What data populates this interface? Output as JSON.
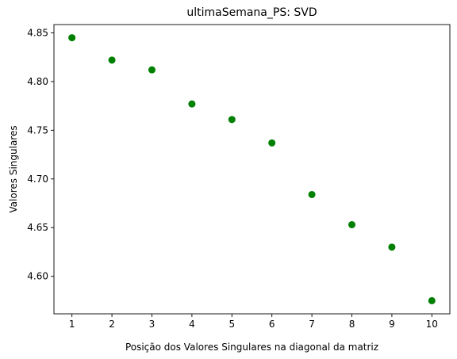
{
  "chart_data": {
    "type": "scatter",
    "title": "ultimaSemana_PS: SVD",
    "xlabel": "Posição dos Valores Singulares na diagonal da matriz",
    "ylabel": "Valores Singulares",
    "x": [
      1,
      2,
      3,
      4,
      5,
      6,
      7,
      8,
      9,
      10
    ],
    "y": [
      4.845,
      4.822,
      4.812,
      4.777,
      4.761,
      4.737,
      4.684,
      4.653,
      4.63,
      4.575
    ],
    "xlim": [
      0.55,
      10.45
    ],
    "ylim": [
      4.5615,
      4.8585
    ],
    "xticks": [
      1,
      2,
      3,
      4,
      5,
      6,
      7,
      8,
      9,
      10
    ],
    "xtick_labels": [
      "1",
      "2",
      "3",
      "4",
      "5",
      "6",
      "7",
      "8",
      "9",
      "10"
    ],
    "yticks": [
      4.6,
      4.65,
      4.7,
      4.75,
      4.8,
      4.85
    ],
    "ytick_labels": [
      "4.60",
      "4.65",
      "4.70",
      "4.75",
      "4.80",
      "4.85"
    ],
    "marker_color": "#008000",
    "grid": false,
    "legend": false
  }
}
